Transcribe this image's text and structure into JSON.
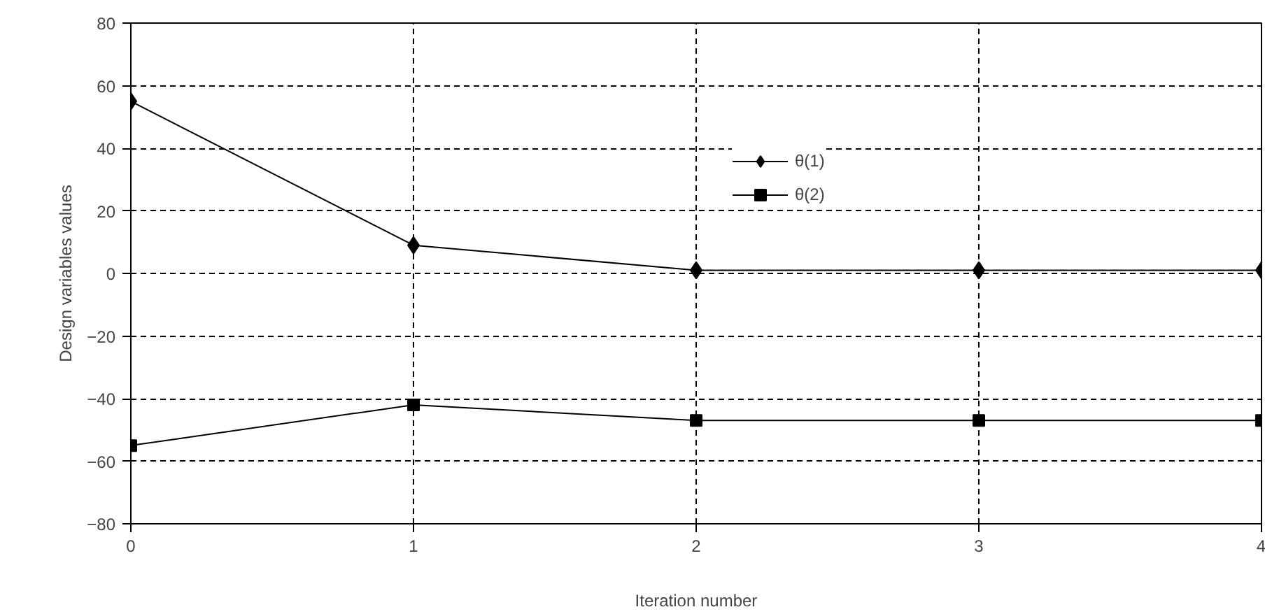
{
  "chart_data": {
    "type": "line",
    "xlabel": "Iteration number",
    "ylabel": "Design variables values",
    "x": [
      0,
      1,
      2,
      3,
      4
    ],
    "series": [
      {
        "name": "θ(1)",
        "color": "#000000",
        "marker": "diamond",
        "values": [
          55,
          9,
          1,
          1,
          1
        ]
      },
      {
        "name": "θ(2)",
        "color": "#000000",
        "marker": "square",
        "values": [
          -55,
          -42,
          -47,
          -47,
          -47
        ]
      }
    ],
    "xlim": [
      0,
      4
    ],
    "xticks": [
      0,
      1,
      2,
      3,
      4
    ],
    "ylim": [
      -80,
      80
    ],
    "yticks": [
      -80,
      -60,
      -40,
      -20,
      0,
      20,
      40,
      60,
      80
    ],
    "grid": true,
    "legend": "top right",
    "line_style": "solid"
  }
}
